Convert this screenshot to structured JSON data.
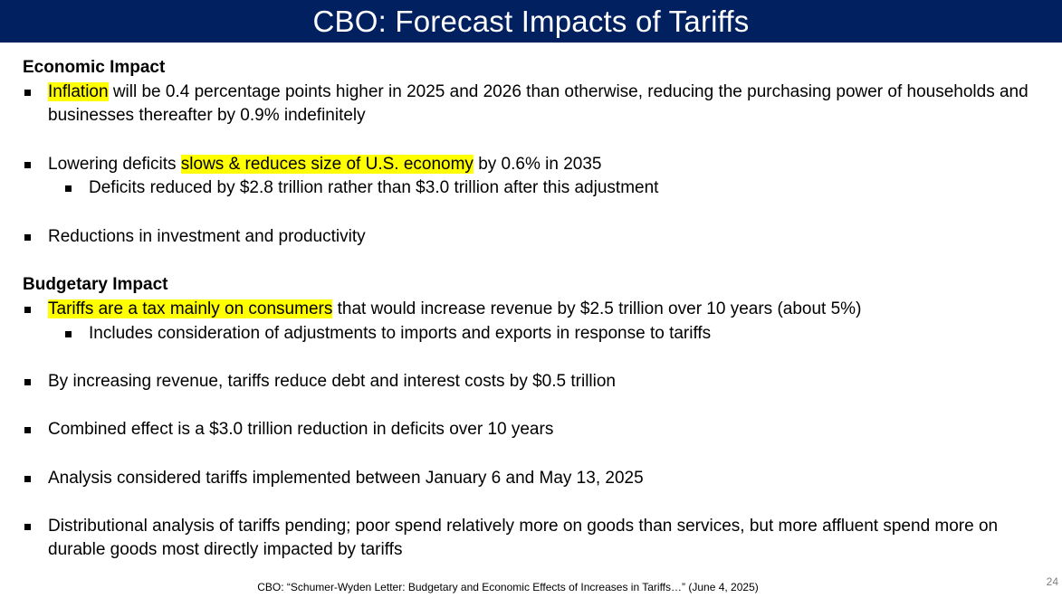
{
  "slide": {
    "title": "CBO: Forecast Impacts of Tariffs",
    "page_number": "24",
    "footnote": "CBO: “Schumer-Wyden Letter: Budgetary and Economic Effects of Increases in Tariffs…” (June 4, 2025)"
  },
  "economic": {
    "heading": "Economic Impact",
    "b1": {
      "hl": "Inflation",
      "rest": " will be 0.4 percentage points higher in 2025 and 2026 than otherwise, reducing the purchasing power of households and businesses thereafter by 0.9% indefinitely"
    },
    "b2": {
      "pre": "Lowering deficits ",
      "hl": "slows & reduces size of U.S. economy",
      "post": " by 0.6% in 2035",
      "sub": "Deficits reduced by $2.8 trillion rather than $3.0 trillion after this adjustment"
    },
    "b3": "Reductions in investment and productivity"
  },
  "budgetary": {
    "heading": "Budgetary Impact",
    "b1": {
      "hl": "Tariffs are a tax mainly on consumers",
      "rest": " that would increase revenue by $2.5 trillion over 10 years (about 5%)",
      "sub": "Includes consideration of adjustments to imports and exports in response to tariffs"
    },
    "b2": "By increasing revenue, tariffs reduce debt and interest costs by $0.5 trillion",
    "b3": "Combined effect is a $3.0 trillion reduction in deficits over 10 years",
    "b4": "Analysis considered tariffs implemented between January 6 and May 13, 2025",
    "b5": "Distributional analysis of tariffs pending; poor spend relatively more on goods than services, but more affluent spend more on durable goods most directly impacted by tariffs"
  },
  "colors": {
    "title_bar": "#002060",
    "highlight": "#ffff00"
  }
}
